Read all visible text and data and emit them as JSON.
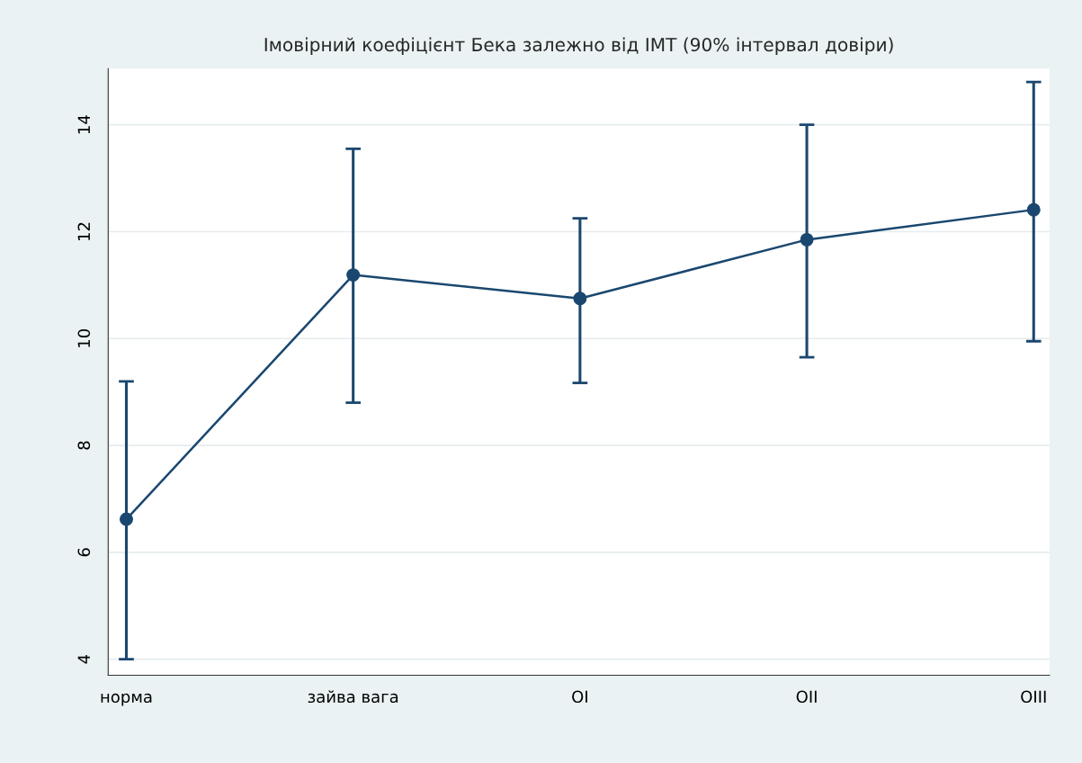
{
  "chart_data": {
    "type": "line",
    "title": "Імовірний коефіцієнт Бека залежно від ІМТ (90% інтервал довіри)",
    "categories": [
      "норма",
      "зайва вага",
      "OI",
      "OII",
      "OIII"
    ],
    "series": [
      {
        "color": "#1a476f",
        "values": [
          6.62,
          11.19,
          10.75,
          11.85,
          12.41
        ],
        "errors": [
          [
            4.0,
            9.2
          ],
          [
            8.8,
            13.55
          ],
          [
            9.17,
            12.25
          ],
          [
            9.65,
            14.0
          ],
          [
            9.95,
            14.8
          ]
        ]
      }
    ],
    "ylim": [
      3.7,
      15.05
    ],
    "yticks": [
      4,
      6,
      8,
      10,
      12,
      14
    ],
    "grid": "y",
    "marker": "circle",
    "line_style": "solid",
    "legend": false
  }
}
